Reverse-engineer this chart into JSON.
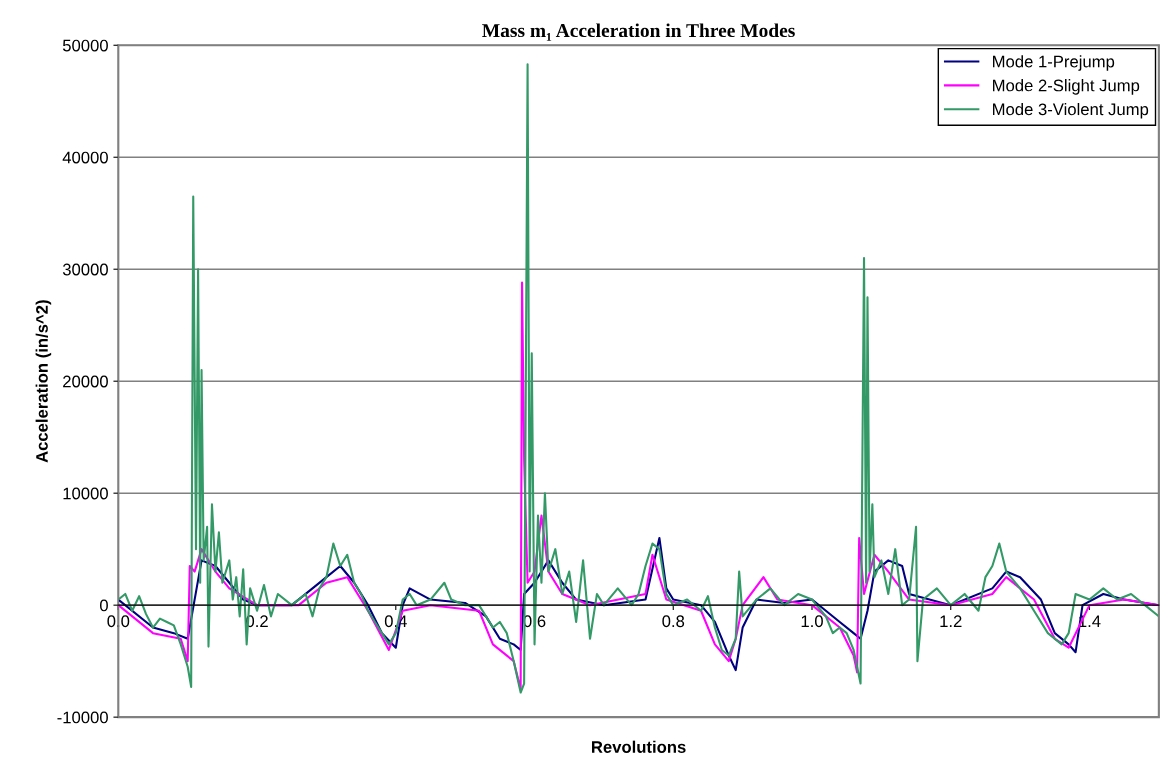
{
  "chart_data": {
    "type": "line",
    "title": "Mass m₁ Acceleration in Three Modes",
    "xlabel": "Revolutions",
    "ylabel": "Acceleration (in/s^2)",
    "xlim": [
      0,
      1.5
    ],
    "xticks": [
      {
        "value": 0,
        "label": "0.0"
      },
      {
        "value": 0.2,
        "label": "0.2"
      },
      {
        "value": 0.4,
        "label": "0.4"
      },
      {
        "value": 0.6,
        "label": "0.6"
      },
      {
        "value": 0.8,
        "label": "0.8"
      },
      {
        "value": 1.0,
        "label": "1.0"
      },
      {
        "value": 1.2,
        "label": "1.2"
      },
      {
        "value": 1.4,
        "label": "1.4"
      }
    ],
    "ylim": [
      -10000,
      50000
    ],
    "yticks": [
      -10000,
      0,
      10000,
      20000,
      30000,
      40000,
      50000
    ],
    "grid": "y",
    "legend": "top right",
    "marker": "none",
    "line_style": "solid",
    "series": [
      {
        "name": "Mode 1-Prejump",
        "color": "#000080",
        "x": [
          0,
          0.05,
          0.08,
          0.1,
          0.11,
          0.12,
          0.14,
          0.16,
          0.18,
          0.2,
          0.25,
          0.3,
          0.32,
          0.34,
          0.36,
          0.38,
          0.4,
          0.41,
          0.42,
          0.45,
          0.5,
          0.53,
          0.55,
          0.57,
          0.58,
          0.585,
          0.6,
          0.62,
          0.64,
          0.66,
          0.7,
          0.76,
          0.78,
          0.79,
          0.8,
          0.84,
          0.86,
          0.88,
          0.89,
          0.9,
          0.92,
          0.96,
          1.0,
          1.04,
          1.06,
          1.07,
          1.08,
          1.09,
          1.11,
          1.13,
          1.14,
          1.2,
          1.26,
          1.28,
          1.3,
          1.33,
          1.35,
          1.37,
          1.38,
          1.39,
          1.42,
          1.45,
          1.5
        ],
        "values": [
          500,
          -2000,
          -2500,
          -3000,
          500,
          4000,
          3500,
          2000,
          500,
          0,
          0,
          2500,
          3500,
          2000,
          0,
          -2500,
          -3800,
          0,
          1500,
          500,
          200,
          -1000,
          -3000,
          -3500,
          -4000,
          1000,
          2000,
          4000,
          2000,
          500,
          0,
          500,
          6000,
          1500,
          500,
          0,
          -1500,
          -4500,
          -5800,
          -2000,
          500,
          200,
          500,
          -1500,
          -2500,
          -3000,
          -500,
          3000,
          4000,
          3500,
          1000,
          0,
          1500,
          3000,
          2500,
          500,
          -2500,
          -3500,
          -4200,
          0,
          1000,
          500,
          0
        ]
      },
      {
        "name": "Mode 2-Slight Jump",
        "color": "#ff00ff",
        "x": [
          0,
          0.05,
          0.09,
          0.1,
          0.103,
          0.11,
          0.12,
          0.14,
          0.16,
          0.2,
          0.26,
          0.3,
          0.33,
          0.36,
          0.39,
          0.41,
          0.45,
          0.52,
          0.54,
          0.57,
          0.58,
          0.582,
          0.585,
          0.59,
          0.6,
          0.61,
          0.62,
          0.64,
          0.68,
          0.76,
          0.77,
          0.79,
          0.84,
          0.86,
          0.88,
          0.89,
          0.9,
          0.93,
          0.95,
          1.0,
          1.04,
          1.06,
          1.065,
          1.068,
          1.075,
          1.09,
          1.11,
          1.14,
          1.2,
          1.26,
          1.28,
          1.32,
          1.35,
          1.37,
          1.4,
          1.45,
          1.5
        ],
        "values": [
          0,
          -2500,
          -3000,
          -5000,
          3500,
          3000,
          5000,
          3000,
          1500,
          0,
          0,
          2000,
          2500,
          -500,
          -4000,
          -500,
          0,
          -500,
          -3500,
          -5000,
          -7500,
          28800,
          13000,
          2000,
          3000,
          8000,
          3000,
          1000,
          0,
          1000,
          4500,
          500,
          -500,
          -3500,
          -5000,
          -3000,
          0,
          2500,
          500,
          0,
          -2000,
          -4500,
          -6000,
          6000,
          1000,
          4500,
          3000,
          500,
          0,
          1000,
          2500,
          500,
          -3000,
          -3800,
          0,
          500,
          0
        ]
      },
      {
        "name": "Mode 3-Violent Jump",
        "color": "#339966",
        "x": [
          0,
          0.01,
          0.02,
          0.03,
          0.04,
          0.05,
          0.06,
          0.07,
          0.08,
          0.09,
          0.1,
          0.105,
          0.108,
          0.112,
          0.115,
          0.118,
          0.12,
          0.123,
          0.128,
          0.13,
          0.135,
          0.14,
          0.145,
          0.15,
          0.16,
          0.165,
          0.17,
          0.175,
          0.18,
          0.185,
          0.19,
          0.2,
          0.21,
          0.22,
          0.23,
          0.25,
          0.27,
          0.28,
          0.29,
          0.3,
          0.31,
          0.32,
          0.33,
          0.34,
          0.35,
          0.36,
          0.37,
          0.38,
          0.39,
          0.4,
          0.41,
          0.42,
          0.43,
          0.45,
          0.47,
          0.48,
          0.5,
          0.52,
          0.54,
          0.55,
          0.56,
          0.57,
          0.58,
          0.585,
          0.59,
          0.593,
          0.596,
          0.6,
          0.605,
          0.61,
          0.615,
          0.62,
          0.63,
          0.64,
          0.65,
          0.66,
          0.67,
          0.68,
          0.69,
          0.7,
          0.72,
          0.74,
          0.75,
          0.76,
          0.77,
          0.78,
          0.79,
          0.8,
          0.82,
          0.84,
          0.85,
          0.86,
          0.87,
          0.88,
          0.89,
          0.895,
          0.9,
          0.92,
          0.94,
          0.96,
          0.98,
          1.0,
          1.02,
          1.03,
          1.04,
          1.05,
          1.06,
          1.07,
          1.075,
          1.078,
          1.08,
          1.083,
          1.087,
          1.09,
          1.1,
          1.11,
          1.12,
          1.13,
          1.14,
          1.15,
          1.152,
          1.16,
          1.18,
          1.2,
          1.22,
          1.24,
          1.25,
          1.26,
          1.27,
          1.28,
          1.3,
          1.32,
          1.34,
          1.36,
          1.37,
          1.38,
          1.4,
          1.42,
          1.44,
          1.46,
          1.48,
          1.5
        ],
        "values": [
          500,
          1000,
          -500,
          800,
          -800,
          -2000,
          -1200,
          -1500,
          -1800,
          -3500,
          -5500,
          -7300,
          36500,
          5000,
          30000,
          2000,
          21000,
          4000,
          7000,
          -3700,
          9000,
          3000,
          6500,
          2000,
          4000,
          500,
          2500,
          -1000,
          3200,
          -3500,
          1500,
          -500,
          1800,
          -1000,
          1000,
          0,
          1000,
          -1000,
          1500,
          2500,
          5500,
          3500,
          4500,
          2000,
          1000,
          -500,
          -1500,
          -2500,
          -3500,
          -2500,
          500,
          1000,
          0,
          500,
          2000,
          500,
          0,
          0,
          -2000,
          -1500,
          -2500,
          -5000,
          -7800,
          -7000,
          48300,
          3000,
          22500,
          -3500,
          8000,
          2000,
          10000,
          3000,
          5000,
          1000,
          3000,
          -1500,
          4000,
          -3000,
          1000,
          0,
          1500,
          0,
          1000,
          3500,
          5500,
          5000,
          1000,
          0,
          500,
          -500,
          800,
          -2000,
          -4000,
          -4500,
          -3000,
          3000,
          -1000,
          500,
          1500,
          0,
          1000,
          500,
          -1000,
          -2500,
          -2000,
          -2500,
          -4000,
          -7000,
          31000,
          2000,
          27500,
          3000,
          9000,
          2500,
          4000,
          1000,
          5000,
          0,
          500,
          7000,
          -5000,
          500,
          1500,
          0,
          1000,
          -500,
          2500,
          3500,
          5500,
          3000,
          1500,
          -500,
          -2500,
          -3500,
          -2500,
          1000,
          500,
          1500,
          500,
          1000,
          0,
          -1000
        ]
      }
    ]
  }
}
